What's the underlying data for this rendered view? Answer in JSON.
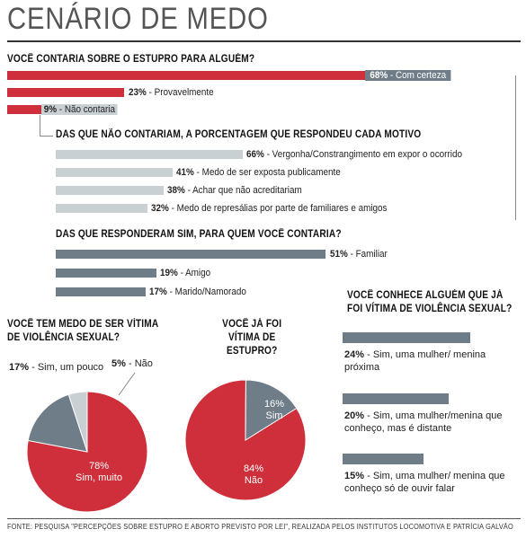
{
  "title": "CENÁRIO DE MEDO",
  "source": "FONTE: PESQUISA \"PERCEPÇÕES SOBRE ESTUPRO E ABORTO PREVISTO POR LEI\", REALIZADA PELOS INSTITUTOS LOCOMOTIVA E PATRÍCIA GALVÃO",
  "colors": {
    "red": "#cf2f3a",
    "light_gray": "#c9d0d4",
    "slate": "#6e7d88"
  },
  "chart_data": [
    {
      "type": "bar",
      "title": "VOCÊ CONTARIA SOBRE O ESTUPRO PARA ALGUÉM?",
      "categories": [
        "Com certeza",
        "Provavelmente",
        "Não contaria"
      ],
      "values": [
        68,
        23,
        9
      ],
      "value_labels": [
        "68%",
        "23%",
        "9%"
      ],
      "xlim": [
        0,
        100
      ]
    },
    {
      "type": "bar",
      "title": "DAS QUE NÃO CONTARIAM, A PORCENTAGEM QUE RESPONDEU CADA MOTIVO",
      "categories": [
        "Vergonha/Constrangimento em expor o ocorrido",
        "Medo de ser exposta publicamente",
        "Achar que não acreditariam",
        "Medo de represálias por parte de familiares e amigos"
      ],
      "values": [
        66,
        41,
        38,
        32
      ],
      "value_labels": [
        "66%",
        "41%",
        "38%",
        "32%"
      ],
      "xlim": [
        0,
        100
      ]
    },
    {
      "type": "bar",
      "title": "DAS QUE RESPONDERAM SIM, PARA QUEM VOCÊ CONTARIA?",
      "categories": [
        "Familiar",
        "Amigo",
        "Marido/Namorado"
      ],
      "values": [
        51,
        19,
        17
      ],
      "value_labels": [
        "51%",
        "19%",
        "17%"
      ],
      "xlim": [
        0,
        100
      ]
    },
    {
      "type": "pie",
      "title": "VOCÊ TEM MEDO DE SER VÍTIMA DE VIOLÊNCIA SEXUAL?",
      "slices": [
        {
          "label": "Sim, muito",
          "value": 78,
          "value_label": "78%",
          "color": "#cf2f3a"
        },
        {
          "label": "Sim, um pouco",
          "value": 17,
          "value_label": "17%",
          "color": "#6e7d88"
        },
        {
          "label": "Não",
          "value": 5,
          "value_label": "5%",
          "color": "#c9d0d4"
        }
      ]
    },
    {
      "type": "pie",
      "title": "VOCÊ JÁ FOI VÍTIMA DE ESTUPRO?",
      "slices": [
        {
          "label": "Não",
          "value": 84,
          "value_label": "84%",
          "color": "#cf2f3a"
        },
        {
          "label": "Sim",
          "value": 16,
          "value_label": "16%",
          "color": "#6e7d88"
        }
      ]
    },
    {
      "type": "bar",
      "title": "VOCÊ CONHECE ALGUÉM QUE JÁ FOI VÍTIMA DE VIOLÊNCIA SEXUAL?",
      "categories": [
        "Sim, uma mulher/ menina próxima",
        "Sim, uma mulher/menina que conheço, mas é distante",
        "Sim, uma mulher/ menina que conheço só de ouvir falar"
      ],
      "values": [
        24,
        20,
        15
      ],
      "value_labels": [
        "24%",
        "20%",
        "15%"
      ]
    }
  ]
}
